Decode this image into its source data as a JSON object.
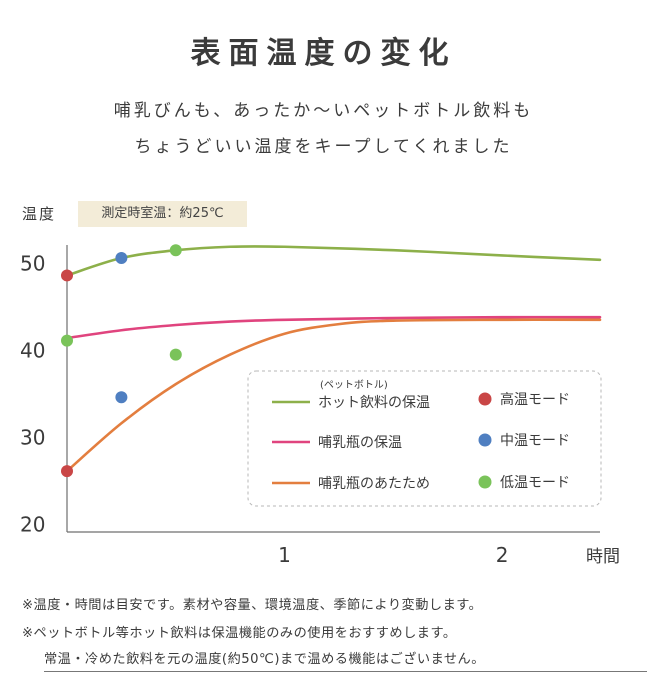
{
  "title": "表面温度の変化",
  "subtitle_line1": "哺乳びんも、あったか〜いペットボトル飲料も",
  "subtitle_line2": "ちょうどいい温度をキープしてくれました",
  "badge": "測定時室温：約25℃",
  "notes": [
    "※温度・時間は目安です。素材や容量、環境温度、季節により変動します。",
    "※ペットボトル等ホット飲料は保温機能のみの使用をおすすめします。",
    "常温・冷めた飲料を元の温度(約50℃)まで温める機能はございません。"
  ],
  "legend": {
    "line_note": "(ペットボトル)",
    "lines": [
      "ホット飲料の保温",
      "哺乳瓶の保温",
      "哺乳瓶のあたため"
    ],
    "points": [
      "高温モード",
      "中温モード",
      "低温モード"
    ]
  },
  "chart_data": {
    "type": "line",
    "ylabel": "温度",
    "xlabel": "時間",
    "xlim": [
      0,
      2.45
    ],
    "ylim": [
      19,
      52
    ],
    "yticks": [
      20,
      30,
      40,
      50
    ],
    "xticks": [
      1,
      2
    ],
    "grid": false,
    "legend_position": "bottom-right",
    "series": [
      {
        "name": "ホット飲料の保温",
        "color": "#8db04a",
        "x": [
          0,
          0.25,
          0.5,
          0.75,
          1.0,
          1.5,
          2.0,
          2.45
        ],
        "y": [
          48.5,
          50.5,
          51.4,
          51.8,
          51.8,
          51.4,
          50.8,
          50.3
        ]
      },
      {
        "name": "哺乳瓶の保温",
        "color": "#e0447e",
        "x": [
          0,
          0.25,
          0.5,
          0.75,
          1.0,
          1.5,
          2.0,
          2.45
        ],
        "y": [
          41.3,
          42.2,
          42.8,
          43.2,
          43.4,
          43.6,
          43.7,
          43.7
        ]
      },
      {
        "name": "哺乳瓶のあたため",
        "color": "#e37e3f",
        "x": [
          0,
          0.25,
          0.5,
          0.75,
          1.0,
          1.25,
          1.5,
          2.0,
          2.45
        ],
        "y": [
          26.0,
          31.5,
          36.0,
          39.4,
          41.8,
          42.9,
          43.3,
          43.4,
          43.4
        ]
      }
    ],
    "points": [
      {
        "name": "高温モード",
        "color": "#c94646",
        "x": 0,
        "y": 48.5
      },
      {
        "name": "高温モード",
        "color": "#c94646",
        "x": 0,
        "y": 26.0
      },
      {
        "name": "中温モード",
        "color": "#4f7fc1",
        "x": 0.25,
        "y": 50.5
      },
      {
        "name": "中温モード",
        "color": "#4f7fc1",
        "x": 0.25,
        "y": 34.5
      },
      {
        "name": "低温モード",
        "color": "#7ac35a",
        "x": 0.5,
        "y": 51.4
      },
      {
        "name": "低温モード",
        "color": "#7ac35a",
        "x": 0,
        "y": 41.0
      },
      {
        "name": "低温モード",
        "color": "#7ac35a",
        "x": 0.5,
        "y": 39.4
      }
    ]
  }
}
